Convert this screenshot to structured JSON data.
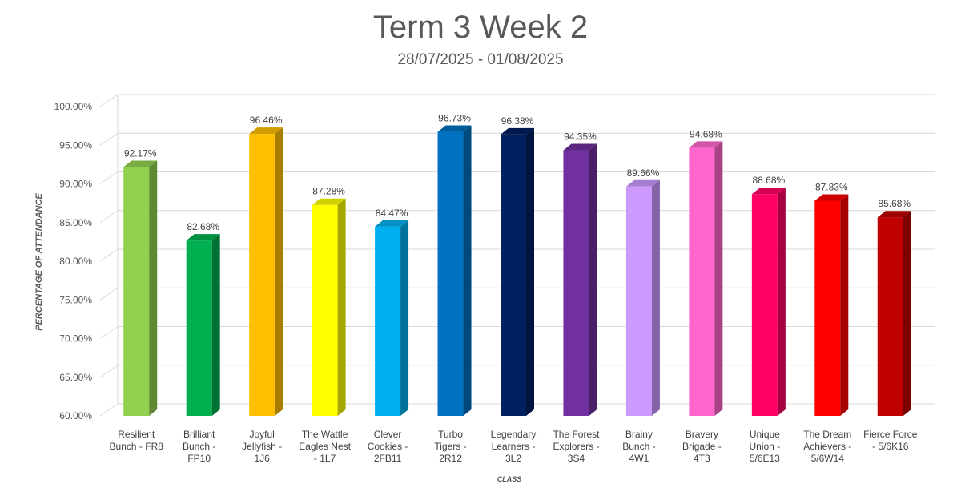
{
  "chart_data": {
    "type": "bar",
    "title": "Term 3 Week 2",
    "subtitle": "28/07/2025 - 01/08/2025",
    "xlabel": "CLASS",
    "ylabel": "PERCENTAGE OF ATTENDANCE",
    "ylim": [
      60,
      100
    ],
    "yticks": [
      "60.00%",
      "65.00%",
      "70.00%",
      "75.00%",
      "80.00%",
      "85.00%",
      "90.00%",
      "95.00%",
      "100.00%"
    ],
    "grid": true,
    "legend": "none",
    "categories": [
      [
        "Resilient",
        "Bunch - FR8"
      ],
      [
        "Brilliant",
        "Bunch -",
        "FP10"
      ],
      [
        "Joyful",
        "Jellyfish -",
        "1J6"
      ],
      [
        "The Wattle",
        "Eagles Nest",
        "- 1L7"
      ],
      [
        "Clever",
        "Cookies -",
        "2FB11"
      ],
      [
        "Turbo",
        "Tigers -",
        "2R12"
      ],
      [
        "Legendary",
        "Learners -",
        "3L2"
      ],
      [
        "The Forest",
        "Explorers -",
        "3S4"
      ],
      [
        "Brainy",
        "Bunch -",
        "4W1"
      ],
      [
        "Bravery",
        "Brigade -",
        "4T3"
      ],
      [
        "Unique",
        "Union -",
        "5/6E13"
      ],
      [
        "The Dream",
        "Achievers -",
        "5/6W14"
      ],
      [
        "Fierce Force",
        "- 5/6K16"
      ]
    ],
    "values": [
      92.17,
      82.68,
      96.46,
      87.28,
      84.47,
      96.73,
      96.38,
      94.35,
      89.66,
      94.68,
      88.68,
      87.83,
      85.68
    ],
    "data_labels": [
      "92.17%",
      "82.68%",
      "96.46%",
      "87.28%",
      "84.47%",
      "96.73%",
      "96.38%",
      "94.35%",
      "89.66%",
      "94.68%",
      "88.68%",
      "87.83%",
      "85.68%"
    ],
    "colors": [
      "#92D050",
      "#00B050",
      "#FFC000",
      "#FFFF00",
      "#00B0F0",
      "#0070C0",
      "#002060",
      "#7030A0",
      "#CC99FF",
      "#FF66CC",
      "#FF0066",
      "#FF0000",
      "#C00000"
    ]
  }
}
